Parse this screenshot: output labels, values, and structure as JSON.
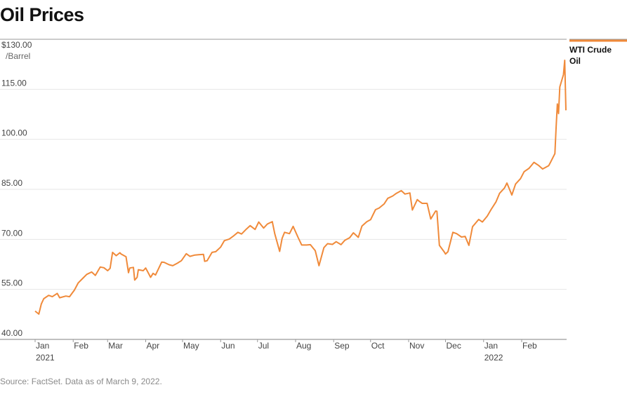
{
  "title": "Oil Prices",
  "source": "Source: FactSet. Data as of March 9, 2022.",
  "chart_data": {
    "type": "line",
    "ylabel_unit": "/Barrel",
    "ylim": [
      40,
      130
    ],
    "yticks": [
      {
        "value": 130,
        "label": "$130.00"
      },
      {
        "value": 115,
        "label": "115.00"
      },
      {
        "value": 100,
        "label": "100.00"
      },
      {
        "value": 85,
        "label": "85.00"
      },
      {
        "value": 70,
        "label": "70.00"
      },
      {
        "value": 55,
        "label": "55.00"
      },
      {
        "value": 40,
        "label": "40.00"
      }
    ],
    "xlim": [
      "2021-01-01",
      "2022-03-09"
    ],
    "xticks": [
      {
        "date": "2021-01-01",
        "label": "Jan",
        "sublabel": "2021"
      },
      {
        "date": "2021-02-01",
        "label": "Feb"
      },
      {
        "date": "2021-03-01",
        "label": "Mar"
      },
      {
        "date": "2021-04-01",
        "label": "Apr"
      },
      {
        "date": "2021-05-01",
        "label": "May"
      },
      {
        "date": "2021-06-01",
        "label": "Jun"
      },
      {
        "date": "2021-07-01",
        "label": "Jul"
      },
      {
        "date": "2021-08-01",
        "label": "Aug"
      },
      {
        "date": "2021-09-01",
        "label": "Sep"
      },
      {
        "date": "2021-10-01",
        "label": "Oct"
      },
      {
        "date": "2021-11-01",
        "label": "Nov"
      },
      {
        "date": "2021-12-01",
        "label": "Dec"
      },
      {
        "date": "2022-01-01",
        "label": "Jan",
        "sublabel": "2022"
      },
      {
        "date": "2022-02-01",
        "label": "Feb"
      }
    ],
    "grid": true,
    "legend_position": "top-right",
    "series": [
      {
        "name": "WTI Crude Oil",
        "color": "#F08A3A",
        "points": [
          [
            "2021-01-01",
            48.5
          ],
          [
            "2021-01-04",
            47.6
          ],
          [
            "2021-01-06",
            50.6
          ],
          [
            "2021-01-08",
            52.2
          ],
          [
            "2021-01-12",
            53.2
          ],
          [
            "2021-01-15",
            52.8
          ],
          [
            "2021-01-19",
            53.8
          ],
          [
            "2021-01-21",
            52.5
          ],
          [
            "2021-01-26",
            53.0
          ],
          [
            "2021-01-29",
            52.8
          ],
          [
            "2021-02-02",
            54.8
          ],
          [
            "2021-02-05",
            56.9
          ],
          [
            "2021-02-09",
            58.4
          ],
          [
            "2021-02-12",
            59.5
          ],
          [
            "2021-02-16",
            60.2
          ],
          [
            "2021-02-19",
            59.2
          ],
          [
            "2021-02-23",
            61.7
          ],
          [
            "2021-02-26",
            61.5
          ],
          [
            "2021-03-01",
            60.6
          ],
          [
            "2021-03-03",
            61.3
          ],
          [
            "2021-03-05",
            66.1
          ],
          [
            "2021-03-08",
            65.1
          ],
          [
            "2021-03-11",
            66.0
          ],
          [
            "2021-03-12",
            65.6
          ],
          [
            "2021-03-16",
            64.8
          ],
          [
            "2021-03-18",
            60.0
          ],
          [
            "2021-03-19",
            61.4
          ],
          [
            "2021-03-22",
            61.6
          ],
          [
            "2021-03-23",
            57.8
          ],
          [
            "2021-03-25",
            58.6
          ],
          [
            "2021-03-26",
            60.9
          ],
          [
            "2021-03-30",
            60.6
          ],
          [
            "2021-04-01",
            61.4
          ],
          [
            "2021-04-05",
            58.6
          ],
          [
            "2021-04-07",
            59.8
          ],
          [
            "2021-04-09",
            59.3
          ],
          [
            "2021-04-14",
            63.2
          ],
          [
            "2021-04-16",
            63.1
          ],
          [
            "2021-04-20",
            62.4
          ],
          [
            "2021-04-23",
            62.1
          ],
          [
            "2021-04-27",
            62.9
          ],
          [
            "2021-04-30",
            63.6
          ],
          [
            "2021-05-04",
            65.7
          ],
          [
            "2021-05-07",
            64.9
          ],
          [
            "2021-05-11",
            65.3
          ],
          [
            "2021-05-14",
            65.4
          ],
          [
            "2021-05-18",
            65.5
          ],
          [
            "2021-05-19",
            63.4
          ],
          [
            "2021-05-21",
            63.6
          ],
          [
            "2021-05-25",
            66.1
          ],
          [
            "2021-05-28",
            66.3
          ],
          [
            "2021-06-01",
            67.7
          ],
          [
            "2021-06-04",
            69.6
          ],
          [
            "2021-06-08",
            70.1
          ],
          [
            "2021-06-11",
            70.9
          ],
          [
            "2021-06-15",
            72.1
          ],
          [
            "2021-06-18",
            71.6
          ],
          [
            "2021-06-22",
            73.1
          ],
          [
            "2021-06-25",
            74.1
          ],
          [
            "2021-06-29",
            72.98
          ],
          [
            "2021-07-02",
            75.2
          ],
          [
            "2021-07-06",
            73.4
          ],
          [
            "2021-07-09",
            74.6
          ],
          [
            "2021-07-13",
            75.3
          ],
          [
            "2021-07-15",
            71.7
          ],
          [
            "2021-07-19",
            66.4
          ],
          [
            "2021-07-21",
            70.3
          ],
          [
            "2021-07-23",
            72.1
          ],
          [
            "2021-07-27",
            71.7
          ],
          [
            "2021-07-30",
            73.9
          ],
          [
            "2021-08-03",
            70.6
          ],
          [
            "2021-08-06",
            68.3
          ],
          [
            "2021-08-10",
            68.3
          ],
          [
            "2021-08-13",
            68.4
          ],
          [
            "2021-08-17",
            66.6
          ],
          [
            "2021-08-20",
            62.1
          ],
          [
            "2021-08-24",
            67.5
          ],
          [
            "2021-08-27",
            68.7
          ],
          [
            "2021-08-31",
            68.5
          ],
          [
            "2021-09-03",
            69.3
          ],
          [
            "2021-09-07",
            68.4
          ],
          [
            "2021-09-10",
            69.7
          ],
          [
            "2021-09-14",
            70.5
          ],
          [
            "2021-09-17",
            71.97
          ],
          [
            "2021-09-21",
            70.6
          ],
          [
            "2021-09-24",
            73.98
          ],
          [
            "2021-09-28",
            75.3
          ],
          [
            "2021-10-01",
            75.9
          ],
          [
            "2021-10-05",
            78.9
          ],
          [
            "2021-10-08",
            79.4
          ],
          [
            "2021-10-12",
            80.6
          ],
          [
            "2021-10-15",
            82.3
          ],
          [
            "2021-10-19",
            83.0
          ],
          [
            "2021-10-22",
            83.8
          ],
          [
            "2021-10-26",
            84.6
          ],
          [
            "2021-10-29",
            83.6
          ],
          [
            "2021-11-02",
            83.9
          ],
          [
            "2021-11-04",
            78.8
          ],
          [
            "2021-11-08",
            81.9
          ],
          [
            "2021-11-10",
            81.3
          ],
          [
            "2021-11-12",
            80.8
          ],
          [
            "2021-11-16",
            80.8
          ],
          [
            "2021-11-19",
            76.1
          ],
          [
            "2021-11-23",
            78.5
          ],
          [
            "2021-11-24",
            78.4
          ],
          [
            "2021-11-26",
            68.2
          ],
          [
            "2021-11-30",
            66.2
          ],
          [
            "2021-12-01",
            65.6
          ],
          [
            "2021-12-03",
            66.3
          ],
          [
            "2021-12-07",
            72.1
          ],
          [
            "2021-12-10",
            71.7
          ],
          [
            "2021-12-14",
            70.7
          ],
          [
            "2021-12-17",
            70.9
          ],
          [
            "2021-12-20",
            68.2
          ],
          [
            "2021-12-23",
            73.8
          ],
          [
            "2021-12-28",
            75.98
          ],
          [
            "2021-12-31",
            75.2
          ],
          [
            "2022-01-04",
            76.99
          ],
          [
            "2022-01-07",
            78.9
          ],
          [
            "2022-01-11",
            81.2
          ],
          [
            "2022-01-14",
            83.8
          ],
          [
            "2022-01-18",
            85.4
          ],
          [
            "2022-01-20",
            86.9
          ],
          [
            "2022-01-24",
            83.3
          ],
          [
            "2022-01-27",
            86.6
          ],
          [
            "2022-01-31",
            88.2
          ],
          [
            "2022-02-03",
            90.3
          ],
          [
            "2022-02-07",
            91.3
          ],
          [
            "2022-02-11",
            93.1
          ],
          [
            "2022-02-15",
            92.1
          ],
          [
            "2022-02-18",
            91.1
          ],
          [
            "2022-02-23",
            92.1
          ],
          [
            "2022-02-24",
            92.8
          ],
          [
            "2022-02-28",
            95.7
          ],
          [
            "2022-03-01",
            103.4
          ],
          [
            "2022-03-02",
            110.6
          ],
          [
            "2022-03-03",
            107.7
          ],
          [
            "2022-03-04",
            115.7
          ],
          [
            "2022-03-07",
            119.4
          ],
          [
            "2022-03-08",
            123.7
          ],
          [
            "2022-03-09",
            108.7
          ]
        ]
      }
    ]
  }
}
